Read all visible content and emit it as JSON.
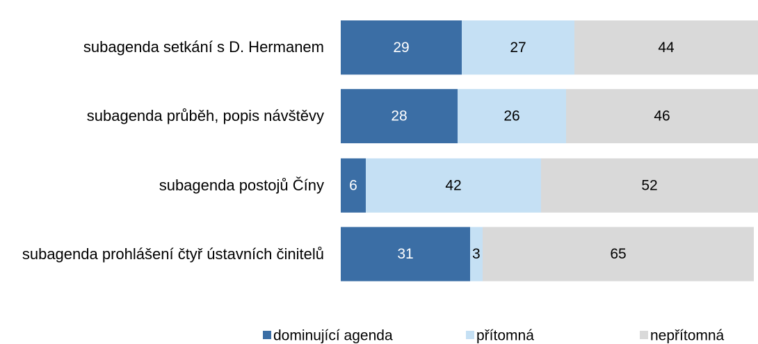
{
  "chart_data": {
    "type": "stacked-bar-horizontal",
    "categories": [
      "subagenda setkání s D. Hermanem",
      "subagenda průběh, popis návštěvy",
      "subagenda postojů Číny",
      "subagenda prohlášení čtyř ústavních činitelů"
    ],
    "series": [
      {
        "name": "dominující agenda",
        "color": "#3b6ea5",
        "values": [
          29,
          28,
          6,
          31
        ]
      },
      {
        "name": "přítomná",
        "color": "#c5e0f4",
        "values": [
          27,
          26,
          42,
          3
        ]
      },
      {
        "name": "nepřítomná",
        "color": "#d9d9d9",
        "values": [
          44,
          46,
          52,
          65
        ]
      }
    ],
    "xlim": [
      0,
      100
    ],
    "legend": "bottom"
  }
}
